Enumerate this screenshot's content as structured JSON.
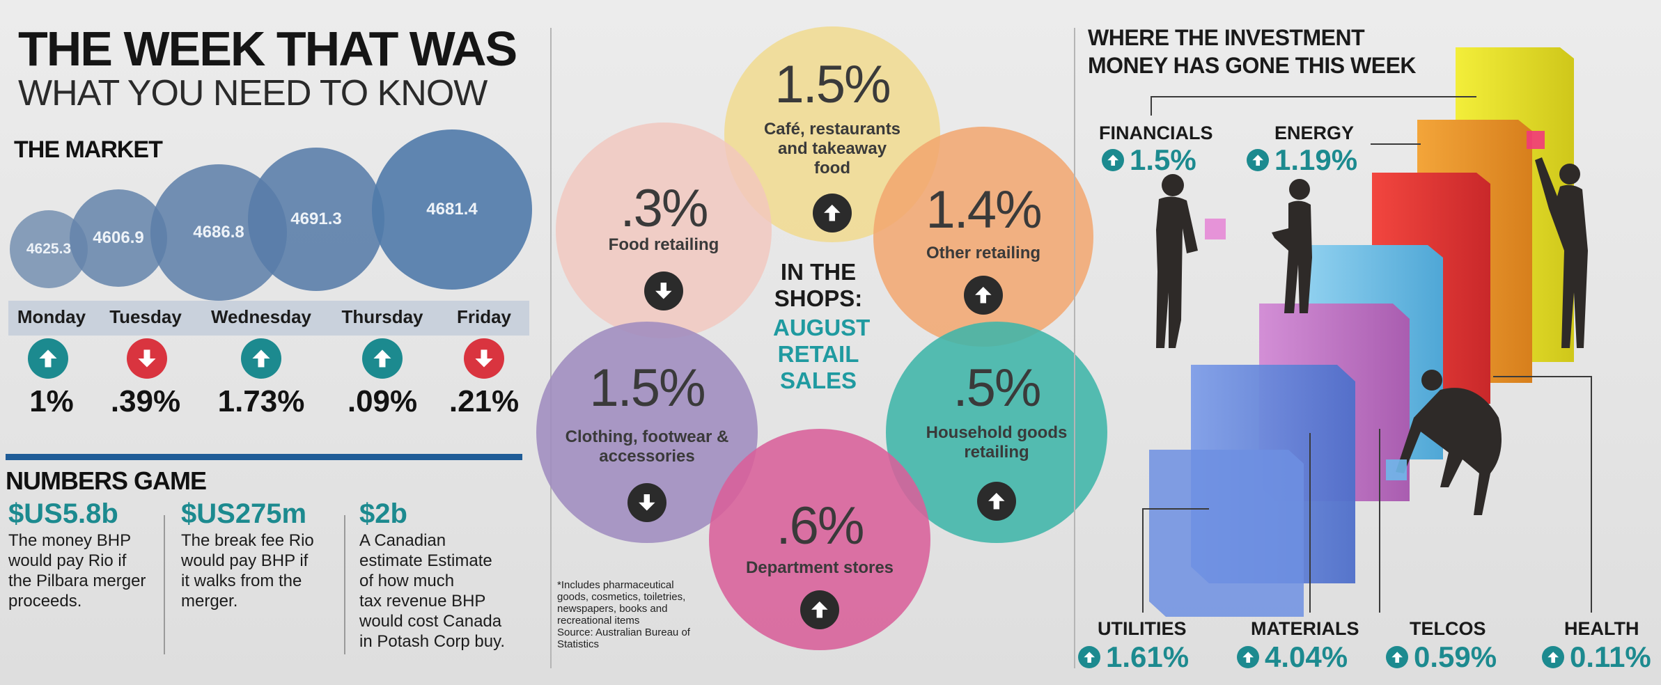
{
  "header": {
    "title": "THE WEEK THAT WAS",
    "subtitle": "WHAT YOU NEED TO KNOW"
  },
  "market": {
    "heading": "THE MARKET",
    "days": [
      {
        "day": "Monday",
        "index": "4625.3",
        "direction": "up",
        "change": "1%"
      },
      {
        "day": "Tuesday",
        "index": "4606.9",
        "direction": "down",
        "change": ".39%"
      },
      {
        "day": "Wednesday",
        "index": "4686.8",
        "direction": "up",
        "change": "1.73%"
      },
      {
        "day": "Thursday",
        "index": "4691.3",
        "direction": "up",
        "change": ".09%"
      },
      {
        "day": "Friday",
        "index": "4681.4",
        "direction": "down",
        "change": ".21%"
      }
    ]
  },
  "numbers_game": {
    "heading": "NUMBERS GAME",
    "items": [
      {
        "amount": "$US5.8b",
        "lines": [
          "The money BHP",
          "would pay Rio if",
          "the Pilbara merger",
          "proceeds."
        ]
      },
      {
        "amount": "$US275m",
        "lines": [
          "The break fee Rio",
          "would pay BHP if",
          "it walks from the",
          "merger."
        ]
      },
      {
        "amount": "$2b",
        "lines": [
          "A Canadian",
          "estimate Estimate",
          "of how much",
          "tax revenue BHP",
          "would cost Canada",
          "in Potash Corp buy."
        ]
      }
    ]
  },
  "retail": {
    "heading_dark": [
      "IN THE",
      "SHOPS:"
    ],
    "heading_teal": [
      "AUGUST",
      "RETAIL",
      "SALES"
    ],
    "segments": [
      {
        "pct": "1.5%",
        "label": [
          "Café, restaurants",
          "and takeaway",
          "food"
        ],
        "direction": "up",
        "color": "#f1d98a"
      },
      {
        "pct": ".3%",
        "label": [
          "Food retailing"
        ],
        "direction": "down",
        "color": "#f2c7be"
      },
      {
        "pct": "1.4%",
        "label": [
          "Other retailing"
        ],
        "direction": "up",
        "color": "#f2a66f"
      },
      {
        "pct": "1.5%",
        "label": [
          "Clothing, footwear &",
          "accessories"
        ],
        "direction": "down",
        "color": "#9f8cbf"
      },
      {
        "pct": ".5%",
        "label": [
          "Household goods",
          "retailing"
        ],
        "direction": "up",
        "color": "#3fb5a8"
      },
      {
        "pct": ".6%",
        "label": [
          "Department stores"
        ],
        "direction": "up",
        "color": "#d8609a"
      }
    ],
    "footnote": [
      "*Includes pharmaceutical",
      "goods, cosmetics, toiletries,",
      "newspapers, books and",
      "recreational items",
      "Source: Australian Bureau of",
      "Statistics"
    ]
  },
  "investment": {
    "title_lines": [
      "WHERE THE INVESTMENT",
      "MONEY HAS GONE THIS WEEK"
    ],
    "sectors": [
      {
        "name": "FINANCIALS",
        "pct": "1.5%"
      },
      {
        "name": "ENERGY",
        "pct": "1.19%"
      },
      {
        "name": "UTILITIES",
        "pct": "1.61%"
      },
      {
        "name": "MATERIALS",
        "pct": "4.04%"
      },
      {
        "name": "TELCOS",
        "pct": "0.59%"
      },
      {
        "name": "HEALTH",
        "pct": "0.11%"
      }
    ]
  },
  "colors": {
    "up_arrow": "#1c8a8f",
    "down_arrow": "#d9343f",
    "market_bubble": "#5f85ad",
    "teal_text": "#1c8a8f",
    "rule": "#1f5c97"
  }
}
